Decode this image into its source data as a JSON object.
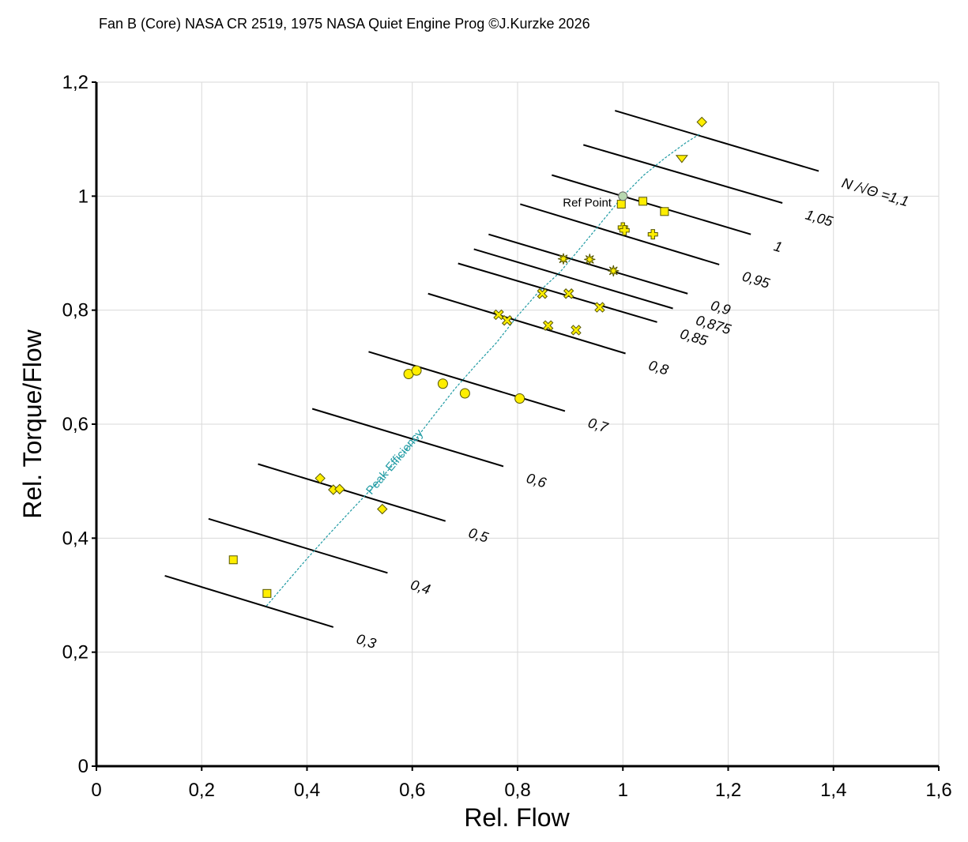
{
  "chart_data": {
    "type": "scatter",
    "title": "Fan B (Core) NASA CR 2519, 1975 NASA Quiet Engine Prog ©J.Kurzke 2026",
    "xlabel": "Rel. Flow",
    "ylabel": "Rel. Torque/Flow",
    "xlim": [
      0,
      1.6
    ],
    "ylim": [
      0,
      1.2
    ],
    "grid": true,
    "x_ticks": [
      {
        "value": 0,
        "label": "0"
      },
      {
        "value": 0.2,
        "label": "0,2"
      },
      {
        "value": 0.4,
        "label": "0,4"
      },
      {
        "value": 0.6,
        "label": "0,6"
      },
      {
        "value": 0.8,
        "label": "0,8"
      },
      {
        "value": 1.0,
        "label": "1"
      },
      {
        "value": 1.2,
        "label": "1,2"
      },
      {
        "value": 1.4,
        "label": "1,4"
      },
      {
        "value": 1.6,
        "label": "1,6"
      }
    ],
    "y_ticks": [
      {
        "value": 0,
        "label": "0"
      },
      {
        "value": 0.2,
        "label": "0,2"
      },
      {
        "value": 0.4,
        "label": "0,4"
      },
      {
        "value": 0.6,
        "label": "0,6"
      },
      {
        "value": 0.8,
        "label": "0,8"
      },
      {
        "value": 1.0,
        "label": "1"
      },
      {
        "value": 1.2,
        "label": "1,2"
      }
    ],
    "speed_lines": [
      {
        "label": "0,3",
        "x": [
          0.13,
          0.45
        ],
        "y": [
          0.334,
          0.244
        ]
      },
      {
        "label": "0,4",
        "x": [
          0.213,
          0.553
        ],
        "y": [
          0.434,
          0.339
        ]
      },
      {
        "label": "0,5",
        "x": [
          0.307,
          0.663
        ],
        "y": [
          0.53,
          0.43
        ]
      },
      {
        "label": "0,6",
        "x": [
          0.41,
          0.773
        ],
        "y": [
          0.627,
          0.526
        ]
      },
      {
        "label": "0,7",
        "x": [
          0.517,
          0.89
        ],
        "y": [
          0.727,
          0.623
        ]
      },
      {
        "label": "0,8",
        "x": [
          0.63,
          1.005
        ],
        "y": [
          0.829,
          0.724
        ]
      },
      {
        "label": "0,85",
        "x": [
          0.687,
          1.065
        ],
        "y": [
          0.882,
          0.779
        ]
      },
      {
        "label": "0,875",
        "x": [
          0.717,
          1.095
        ],
        "y": [
          0.907,
          0.803
        ]
      },
      {
        "label": "0,9",
        "x": [
          0.745,
          1.123
        ],
        "y": [
          0.933,
          0.829
        ]
      },
      {
        "label": "0,95",
        "x": [
          0.805,
          1.183
        ],
        "y": [
          0.986,
          0.88
        ]
      },
      {
        "label": "1",
        "x": [
          0.865,
          1.243
        ],
        "y": [
          1.037,
          0.933
        ]
      },
      {
        "label": "1,05",
        "x": [
          0.925,
          1.303
        ],
        "y": [
          1.09,
          0.988
        ]
      },
      {
        "label": "N /√Θ =1,1",
        "x": [
          0.985,
          1.372
        ],
        "y": [
          1.15,
          1.044
        ]
      }
    ],
    "series": [
      {
        "marker": "square",
        "x": [
          0.26,
          0.324
        ],
        "y": [
          0.362,
          0.303
        ]
      },
      {
        "marker": "diamond",
        "x": [
          0.425,
          0.45,
          0.462,
          0.543
        ],
        "y": [
          0.505,
          0.485,
          0.486,
          0.451
        ]
      },
      {
        "marker": "circle",
        "x": [
          0.593,
          0.608,
          0.658,
          0.7,
          0.804
        ],
        "y": [
          0.688,
          0.694,
          0.671,
          0.654,
          0.645
        ]
      },
      {
        "marker": "cross",
        "x": [
          0.764,
          0.78,
          0.847,
          0.858,
          0.897,
          0.911,
          0.956
        ],
        "y": [
          0.792,
          0.782,
          0.829,
          0.773,
          0.829,
          0.765,
          0.805
        ]
      },
      {
        "marker": "star",
        "x": [
          0.887,
          0.937,
          0.982
        ],
        "y": [
          0.89,
          0.889,
          0.869
        ]
      },
      {
        "marker": "plus",
        "x": [
          1.0,
          1.003,
          1.057
        ],
        "y": [
          0.945,
          0.94,
          0.933
        ]
      },
      {
        "marker": "square",
        "x": [
          0.997,
          1.038,
          1.079
        ],
        "y": [
          0.986,
          0.991,
          0.973
        ]
      },
      {
        "marker": "triangle",
        "x": [
          1.112
        ],
        "y": [
          1.066
        ]
      },
      {
        "marker": "diamond",
        "x": [
          1.15
        ],
        "y": [
          1.13
        ]
      }
    ],
    "peak_efficiency_line": {
      "label": "Peak Efficiency",
      "x": [
        0.323,
        0.36,
        0.4,
        0.44,
        0.48,
        0.52,
        0.56,
        0.6,
        0.64,
        0.68,
        0.72,
        0.76,
        0.8,
        0.84,
        0.88,
        0.92,
        0.96,
        1.0,
        1.04,
        1.08,
        1.12,
        1.148
      ],
      "y": [
        0.281,
        0.321,
        0.364,
        0.405,
        0.445,
        0.484,
        0.525,
        0.566,
        0.614,
        0.661,
        0.703,
        0.743,
        0.79,
        0.832,
        0.866,
        0.91,
        0.955,
        1.0,
        1.037,
        1.067,
        1.094,
        1.11
      ]
    },
    "reference_point": {
      "label": "Ref Point",
      "x": 1.0,
      "y": 1.0
    },
    "colors": {
      "marker_fill": "#ffee00",
      "marker_stroke": "#555500",
      "speed_line": "#000000",
      "peak_line": "#1e9aa3",
      "grid": "#d9d9d9",
      "ref_point_fill": "#b7d7b0"
    }
  }
}
